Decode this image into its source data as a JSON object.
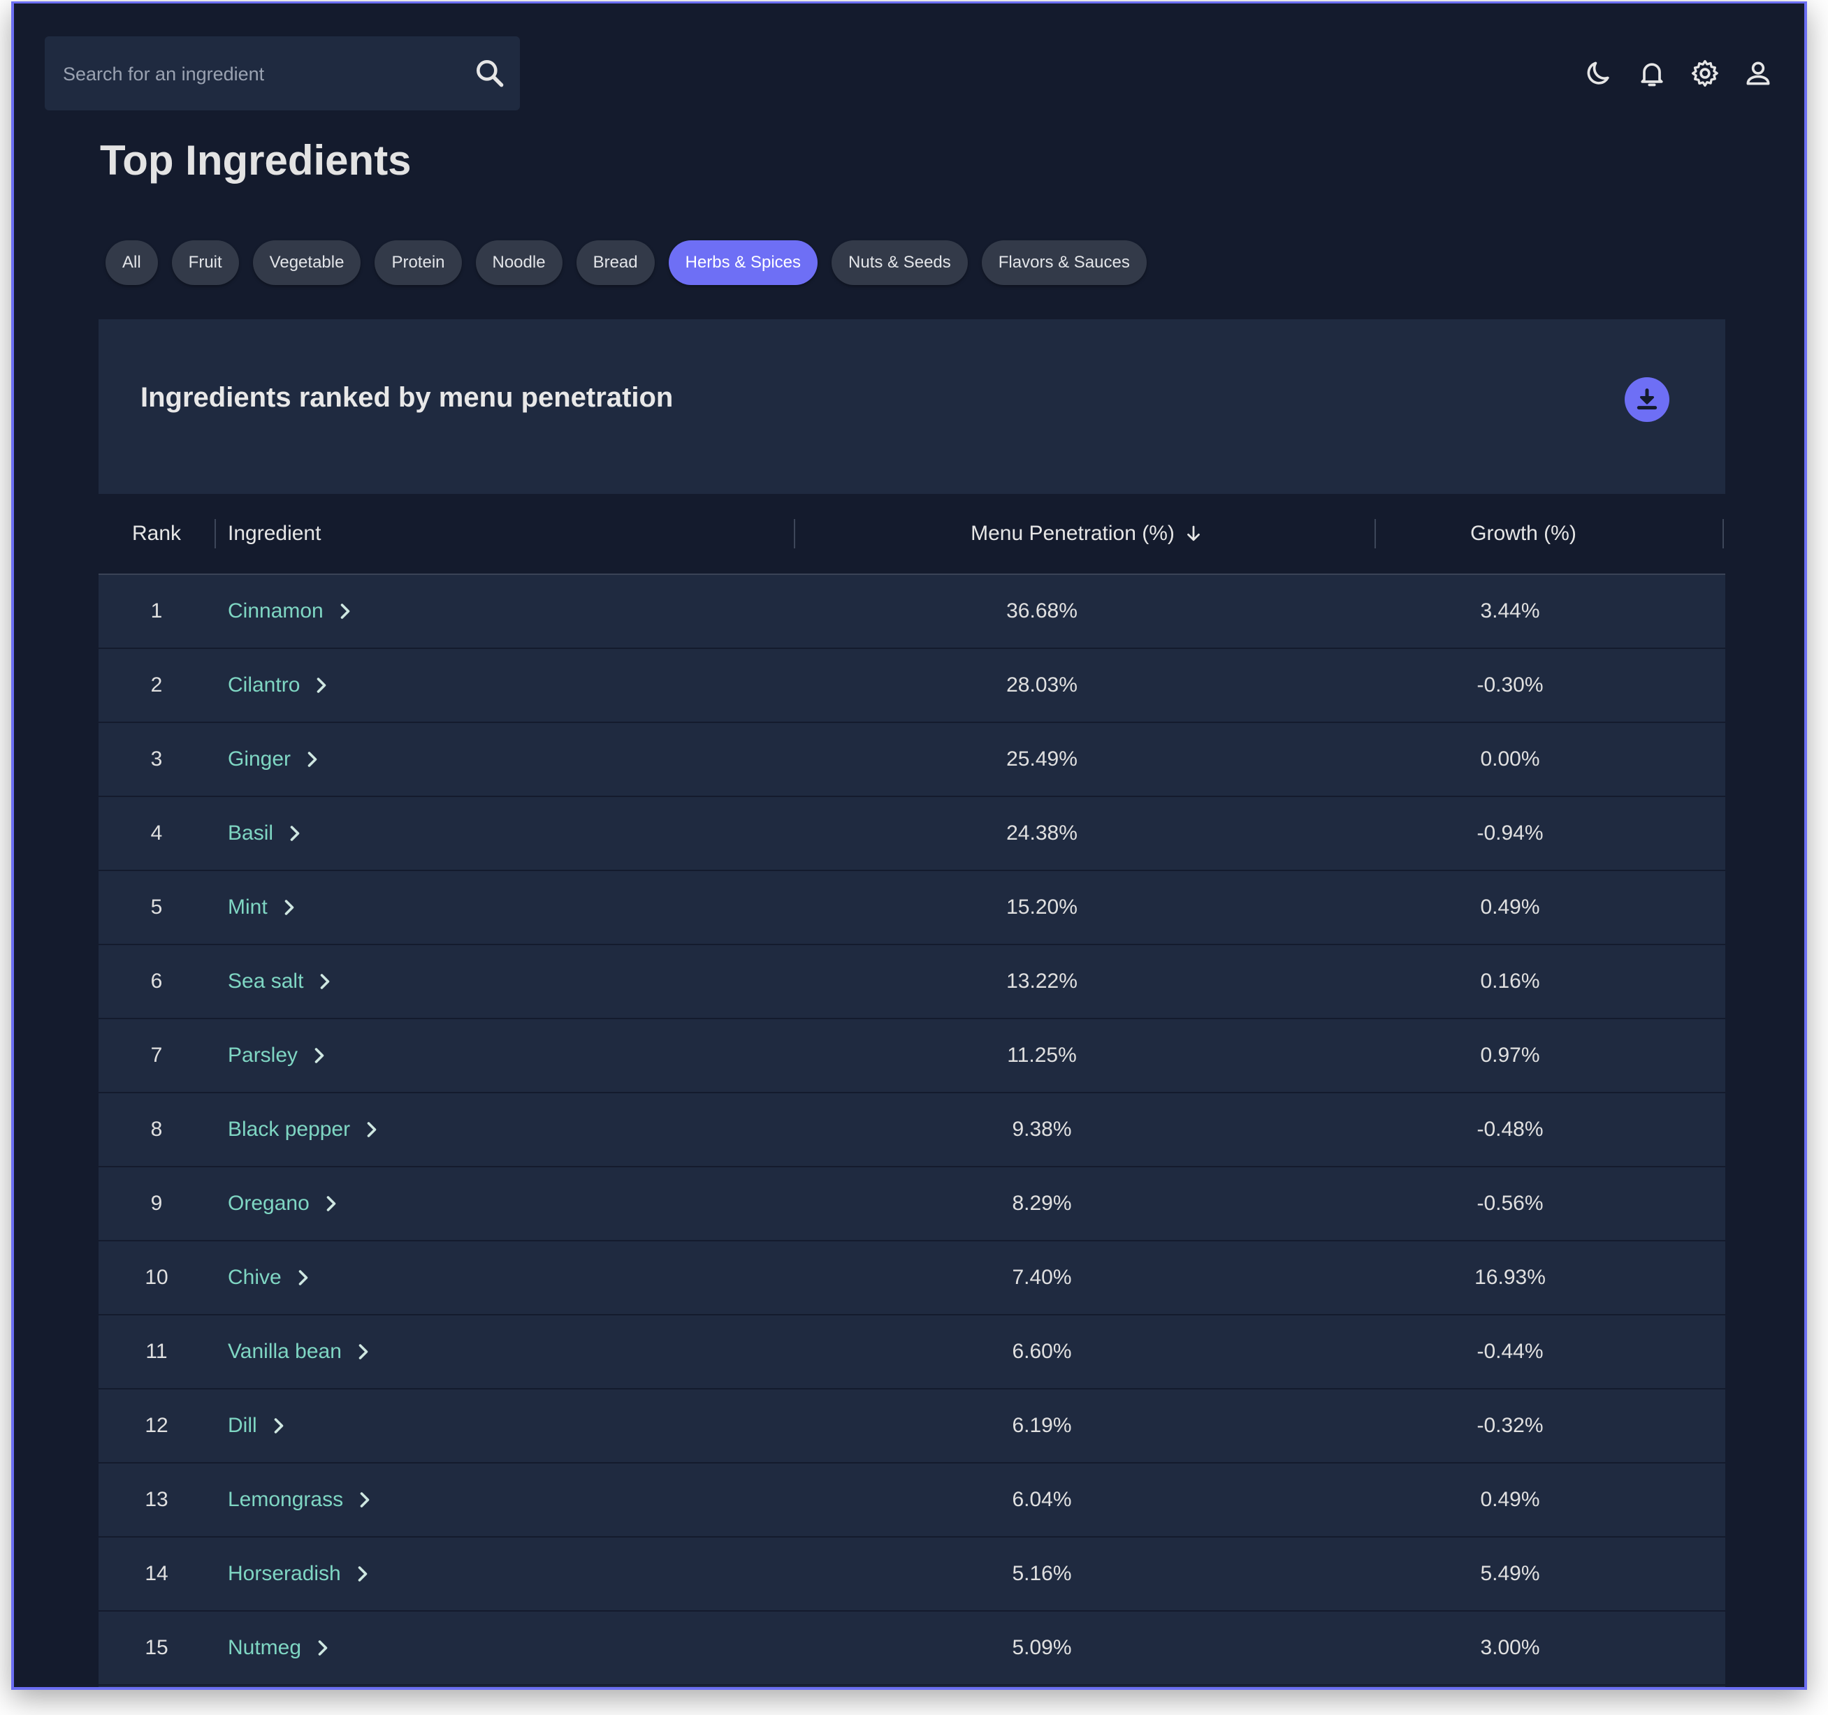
{
  "search": {
    "placeholder": "Search for an ingredient"
  },
  "header_icons": [
    "moon-icon",
    "bell-icon",
    "gear-icon",
    "user-icon"
  ],
  "page": {
    "title": "Top Ingredients"
  },
  "filters": {
    "chips": [
      "All",
      "Fruit",
      "Vegetable",
      "Protein",
      "Noodle",
      "Bread",
      "Herbs & Spices",
      "Nuts & Seeds",
      "Flavors & Sauces"
    ],
    "active": "Herbs & Spices"
  },
  "panel": {
    "title": "Ingredients ranked by menu penetration",
    "download_icon": "download-icon"
  },
  "table": {
    "columns": {
      "rank": "Rank",
      "ingredient": "Ingredient",
      "penetration": "Menu Penetration (%)",
      "growth": "Growth (%)"
    },
    "sort_column": "penetration",
    "sort_direction": "descending",
    "rows": [
      {
        "rank": "1",
        "ingredient": "Cinnamon",
        "penetration": "36.68%",
        "growth": "3.44%"
      },
      {
        "rank": "2",
        "ingredient": "Cilantro",
        "penetration": "28.03%",
        "growth": "-0.30%"
      },
      {
        "rank": "3",
        "ingredient": "Ginger",
        "penetration": "25.49%",
        "growth": "0.00%"
      },
      {
        "rank": "4",
        "ingredient": "Basil",
        "penetration": "24.38%",
        "growth": "-0.94%"
      },
      {
        "rank": "5",
        "ingredient": "Mint",
        "penetration": "15.20%",
        "growth": "0.49%"
      },
      {
        "rank": "6",
        "ingredient": "Sea salt",
        "penetration": "13.22%",
        "growth": "0.16%"
      },
      {
        "rank": "7",
        "ingredient": "Parsley",
        "penetration": "11.25%",
        "growth": "0.97%"
      },
      {
        "rank": "8",
        "ingredient": "Black pepper",
        "penetration": "9.38%",
        "growth": "-0.48%"
      },
      {
        "rank": "9",
        "ingredient": "Oregano",
        "penetration": "8.29%",
        "growth": "-0.56%"
      },
      {
        "rank": "10",
        "ingredient": "Chive",
        "penetration": "7.40%",
        "growth": "16.93%"
      },
      {
        "rank": "11",
        "ingredient": "Vanilla bean",
        "penetration": "6.60%",
        "growth": "-0.44%"
      },
      {
        "rank": "12",
        "ingredient": "Dill",
        "penetration": "6.19%",
        "growth": "-0.32%"
      },
      {
        "rank": "13",
        "ingredient": "Lemongrass",
        "penetration": "6.04%",
        "growth": "0.49%"
      },
      {
        "rank": "14",
        "ingredient": "Horseradish",
        "penetration": "5.16%",
        "growth": "5.49%"
      },
      {
        "rank": "15",
        "ingredient": "Nutmeg",
        "penetration": "5.09%",
        "growth": "3.00%"
      }
    ]
  },
  "colors": {
    "background": "#141b2d",
    "panel": "#1f2a40",
    "accent": "#6e6ff5",
    "link": "#7fd6c3",
    "chip": "#333a49"
  }
}
